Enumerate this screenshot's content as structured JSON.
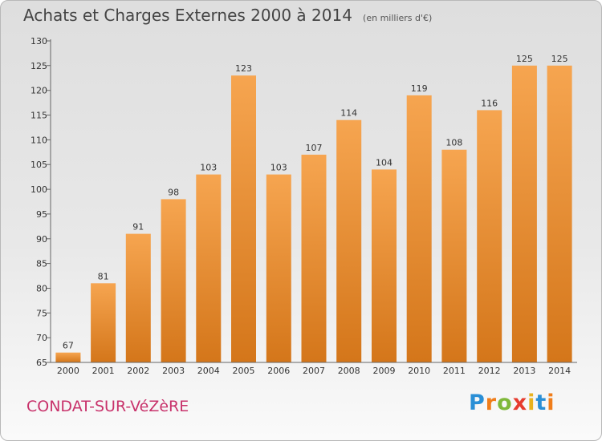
{
  "chart_data": {
    "type": "bar",
    "title": "Achats et Charges Externes 2000 à 2014",
    "subtitle": "(en milliers d'€)",
    "categories": [
      "2000",
      "2001",
      "2002",
      "2003",
      "2004",
      "2005",
      "2006",
      "2007",
      "2008",
      "2009",
      "2010",
      "2011",
      "2012",
      "2013",
      "2014"
    ],
    "values": [
      67,
      81,
      91,
      98,
      103,
      123,
      103,
      107,
      114,
      104,
      119,
      108,
      116,
      125,
      125
    ],
    "ylim": [
      65,
      130
    ],
    "yticks": [
      65,
      70,
      75,
      80,
      85,
      90,
      95,
      100,
      105,
      110,
      115,
      120,
      125,
      130
    ],
    "xlabel": "",
    "ylabel": "",
    "grid": false,
    "bar_color": "#f29933"
  },
  "footer": {
    "commune": "CONDAT-SUR-VéZèRE",
    "logo_letters": [
      "P",
      "r",
      "o",
      "x",
      "i",
      "t",
      "i"
    ],
    "logo_colors": [
      "#2a8fd6",
      "#f07d1a",
      "#7fb83a",
      "#e63b2e",
      "#e8b21f",
      "#2a8fd6",
      "#f07d1a"
    ]
  }
}
